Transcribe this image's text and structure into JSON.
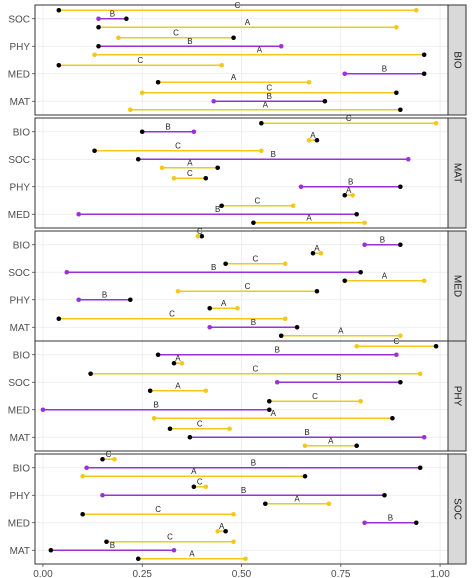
{
  "chart_data": {
    "type": "dumbbell",
    "xlim": [
      -0.02,
      1.02
    ],
    "x_ticks": [
      0,
      0.25,
      0.5,
      0.75,
      1
    ],
    "x_tick_labels": [
      "0.00",
      "0.25",
      "0.50",
      "0.75",
      "1.00"
    ],
    "grid": true,
    "facet_position": "right",
    "colors": {
      "A": "#F2C81B",
      "B": "#9B30D9",
      "C": "#F2C81B",
      "point": "#000000"
    },
    "panels": [
      {
        "facet": "BIO",
        "categories": [
          "SOC",
          "PHY",
          "MED",
          "MAT"
        ],
        "rows": [
          {
            "category": "SOC",
            "label": "C",
            "start": 0.04,
            "end": 0.94
          },
          {
            "category": "SOC",
            "label": "B",
            "start": 0.21,
            "end": 0.14
          },
          {
            "category": "SOC",
            "label": "A",
            "start": 0.14,
            "end": 0.89
          },
          {
            "category": "PHY",
            "label": "C",
            "start": 0.48,
            "end": 0.19
          },
          {
            "category": "PHY",
            "label": "B",
            "start": 0.14,
            "end": 0.6
          },
          {
            "category": "PHY",
            "label": "A",
            "start": 0.96,
            "end": 0.13
          },
          {
            "category": "MED",
            "label": "C",
            "start": 0.04,
            "end": 0.45
          },
          {
            "category": "MED",
            "label": "B",
            "start": 0.96,
            "end": 0.76
          },
          {
            "category": "MED",
            "label": "A",
            "start": 0.29,
            "end": 0.67
          },
          {
            "category": "MAT",
            "label": "C",
            "start": 0.89,
            "end": 0.25
          },
          {
            "category": "MAT",
            "label": "B",
            "start": 0.71,
            "end": 0.43
          },
          {
            "category": "MAT",
            "label": "A",
            "start": 0.9,
            "end": 0.22
          }
        ]
      },
      {
        "facet": "MAT",
        "categories": [
          "BIO",
          "SOC",
          "PHY",
          "MED"
        ],
        "rows": [
          {
            "category": "BIO",
            "label": "C",
            "start": 0.55,
            "end": 0.99
          },
          {
            "category": "BIO",
            "label": "B",
            "start": 0.25,
            "end": 0.38
          },
          {
            "category": "BIO",
            "label": "A",
            "start": 0.69,
            "end": 0.67
          },
          {
            "category": "SOC",
            "label": "C",
            "start": 0.13,
            "end": 0.55
          },
          {
            "category": "SOC",
            "label": "B",
            "start": 0.24,
            "end": 0.92
          },
          {
            "category": "SOC",
            "label": "A",
            "start": 0.44,
            "end": 0.3
          },
          {
            "category": "PHY",
            "label": "C",
            "start": 0.41,
            "end": 0.33
          },
          {
            "category": "PHY",
            "label": "B",
            "start": 0.9,
            "end": 0.65
          },
          {
            "category": "PHY",
            "label": "A",
            "start": 0.76,
            "end": 0.78
          },
          {
            "category": "MED",
            "label": "C",
            "start": 0.45,
            "end": 0.63
          },
          {
            "category": "MED",
            "label": "B",
            "start": 0.79,
            "end": 0.09
          },
          {
            "category": "MED",
            "label": "A",
            "start": 0.53,
            "end": 0.81
          }
        ]
      },
      {
        "facet": "MED",
        "categories": [
          "BIO",
          "SOC",
          "PHY",
          "MAT"
        ],
        "rows": [
          {
            "category": "BIO",
            "label": "C",
            "start": 0.4,
            "end": 0.39
          },
          {
            "category": "BIO",
            "label": "B",
            "start": 0.9,
            "end": 0.81
          },
          {
            "category": "BIO",
            "label": "A",
            "start": 0.68,
            "end": 0.7
          },
          {
            "category": "SOC",
            "label": "C",
            "start": 0.46,
            "end": 0.61
          },
          {
            "category": "SOC",
            "label": "B",
            "start": 0.8,
            "end": 0.06
          },
          {
            "category": "SOC",
            "label": "A",
            "start": 0.76,
            "end": 0.96
          },
          {
            "category": "PHY",
            "label": "C",
            "start": 0.69,
            "end": 0.34
          },
          {
            "category": "PHY",
            "label": "B",
            "start": 0.22,
            "end": 0.09
          },
          {
            "category": "PHY",
            "label": "A",
            "start": 0.42,
            "end": 0.49
          },
          {
            "category": "MAT",
            "label": "C",
            "start": 0.04,
            "end": 0.61
          },
          {
            "category": "MAT",
            "label": "B",
            "start": 0.64,
            "end": 0.42
          },
          {
            "category": "MAT",
            "label": "A",
            "start": 0.6,
            "end": 0.9
          }
        ]
      },
      {
        "facet": "PHY",
        "categories": [
          "BIO",
          "SOC",
          "MED",
          "MAT"
        ],
        "rows": [
          {
            "category": "BIO",
            "label": "C",
            "start": 0.99,
            "end": 0.79
          },
          {
            "category": "BIO",
            "label": "B",
            "start": 0.29,
            "end": 0.89
          },
          {
            "category": "BIO",
            "label": "A",
            "start": 0.33,
            "end": 0.35
          },
          {
            "category": "SOC",
            "label": "C",
            "start": 0.12,
            "end": 0.95
          },
          {
            "category": "SOC",
            "label": "B",
            "start": 0.9,
            "end": 0.59
          },
          {
            "category": "SOC",
            "label": "A",
            "start": 0.27,
            "end": 0.41
          },
          {
            "category": "MED",
            "label": "C",
            "start": 0.57,
            "end": 0.8
          },
          {
            "category": "MED",
            "label": "B",
            "start": 0.57,
            "end": 0.0
          },
          {
            "category": "MED",
            "label": "A",
            "start": 0.88,
            "end": 0.28
          },
          {
            "category": "MAT",
            "label": "C",
            "start": 0.32,
            "end": 0.47
          },
          {
            "category": "MAT",
            "label": "B",
            "start": 0.37,
            "end": 0.96
          },
          {
            "category": "MAT",
            "label": "A",
            "start": 0.79,
            "end": 0.66
          }
        ]
      },
      {
        "facet": "SOC",
        "categories": [
          "BIO",
          "PHY",
          "MED",
          "MAT"
        ],
        "rows": [
          {
            "category": "BIO",
            "label": "C",
            "start": 0.15,
            "end": 0.18
          },
          {
            "category": "BIO",
            "label": "B",
            "start": 0.95,
            "end": 0.11
          },
          {
            "category": "BIO",
            "label": "A",
            "start": 0.66,
            "end": 0.1
          },
          {
            "category": "PHY",
            "label": "C",
            "start": 0.38,
            "end": 0.41
          },
          {
            "category": "PHY",
            "label": "B",
            "start": 0.86,
            "end": 0.15
          },
          {
            "category": "PHY",
            "label": "A",
            "start": 0.56,
            "end": 0.72
          },
          {
            "category": "MED",
            "label": "C",
            "start": 0.1,
            "end": 0.48
          },
          {
            "category": "MED",
            "label": "B",
            "start": 0.94,
            "end": 0.81
          },
          {
            "category": "MED",
            "label": "A",
            "start": 0.46,
            "end": 0.44
          },
          {
            "category": "MAT",
            "label": "C",
            "start": 0.16,
            "end": 0.48
          },
          {
            "category": "MAT",
            "label": "B",
            "start": 0.02,
            "end": 0.33
          },
          {
            "category": "MAT",
            "label": "A",
            "start": 0.24,
            "end": 0.51
          }
        ]
      }
    ]
  }
}
